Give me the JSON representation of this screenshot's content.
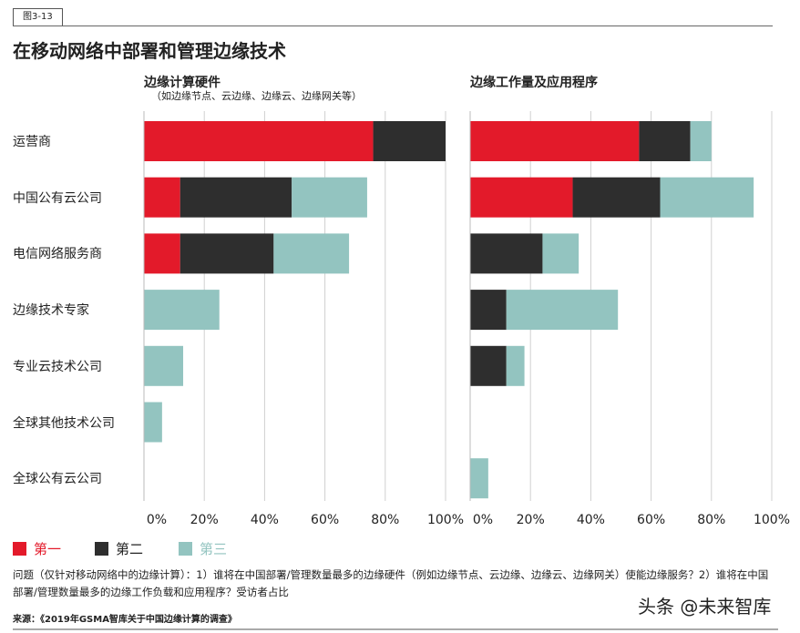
{
  "figure_label": "图3-13",
  "title": "在移动网络中部署和管理边缘技术",
  "colors": {
    "first": "#e31a2a",
    "second": "#2e2e2e",
    "third": "#93c4c0",
    "grid": "#d0d0d0"
  },
  "legend": [
    "第一",
    "第二",
    "第三"
  ],
  "question": "问题（仅针对移动网络中的边缘计算）：1）谁将在中国部署/管理数量最多的边缘硬件（例如边缘节点、云边缘、边缘云、边缘网关）使能边缘服务？2）谁将在中国部署/管理数量最多的边缘工作负载和应用程序？受访者占比",
  "source": "来源：《2019年GSMA智库关于中国边缘计算的调查》",
  "watermark": "头条 @未来智库",
  "chart_data": [
    {
      "type": "bar",
      "orientation": "horizontal",
      "stacked": true,
      "title": "边缘计算硬件",
      "subtitle": "（如边缘节点、云边缘、边缘云、边缘网关等）",
      "categories": [
        "运营商",
        "中国公有云公司",
        "电信网络服务商",
        "边缘技术专家",
        "专业云技术公司",
        "全球其他技术公司",
        "全球公有云公司"
      ],
      "xlim": [
        0,
        100
      ],
      "xticks": [
        "0%",
        "20%",
        "40%",
        "60%",
        "80%",
        "100%"
      ],
      "grid": true,
      "series": [
        {
          "name": "第一",
          "values": [
            76,
            12,
            12,
            0,
            0,
            0,
            0
          ]
        },
        {
          "name": "第二",
          "values": [
            24,
            37,
            31,
            0,
            0,
            0,
            0
          ]
        },
        {
          "name": "第三",
          "values": [
            0,
            25,
            25,
            25,
            13,
            6,
            0
          ]
        }
      ]
    },
    {
      "type": "bar",
      "orientation": "horizontal",
      "stacked": true,
      "title": "边缘工作量及应用程序",
      "subtitle": "",
      "categories": [
        "运营商",
        "中国公有云公司",
        "电信网络服务商",
        "边缘技术专家",
        "专业云技术公司",
        "全球其他技术公司",
        "全球公有云公司"
      ],
      "xlim": [
        0,
        100
      ],
      "xticks": [
        "0%",
        "20%",
        "40%",
        "60%",
        "80%",
        "100%"
      ],
      "grid": true,
      "series": [
        {
          "name": "第一",
          "values": [
            56,
            34,
            0,
            0,
            0,
            0,
            0
          ]
        },
        {
          "name": "第二",
          "values": [
            17,
            29,
            24,
            12,
            12,
            0,
            0
          ]
        },
        {
          "name": "第三",
          "values": [
            7,
            31,
            12,
            37,
            6,
            0,
            6
          ]
        }
      ]
    }
  ]
}
